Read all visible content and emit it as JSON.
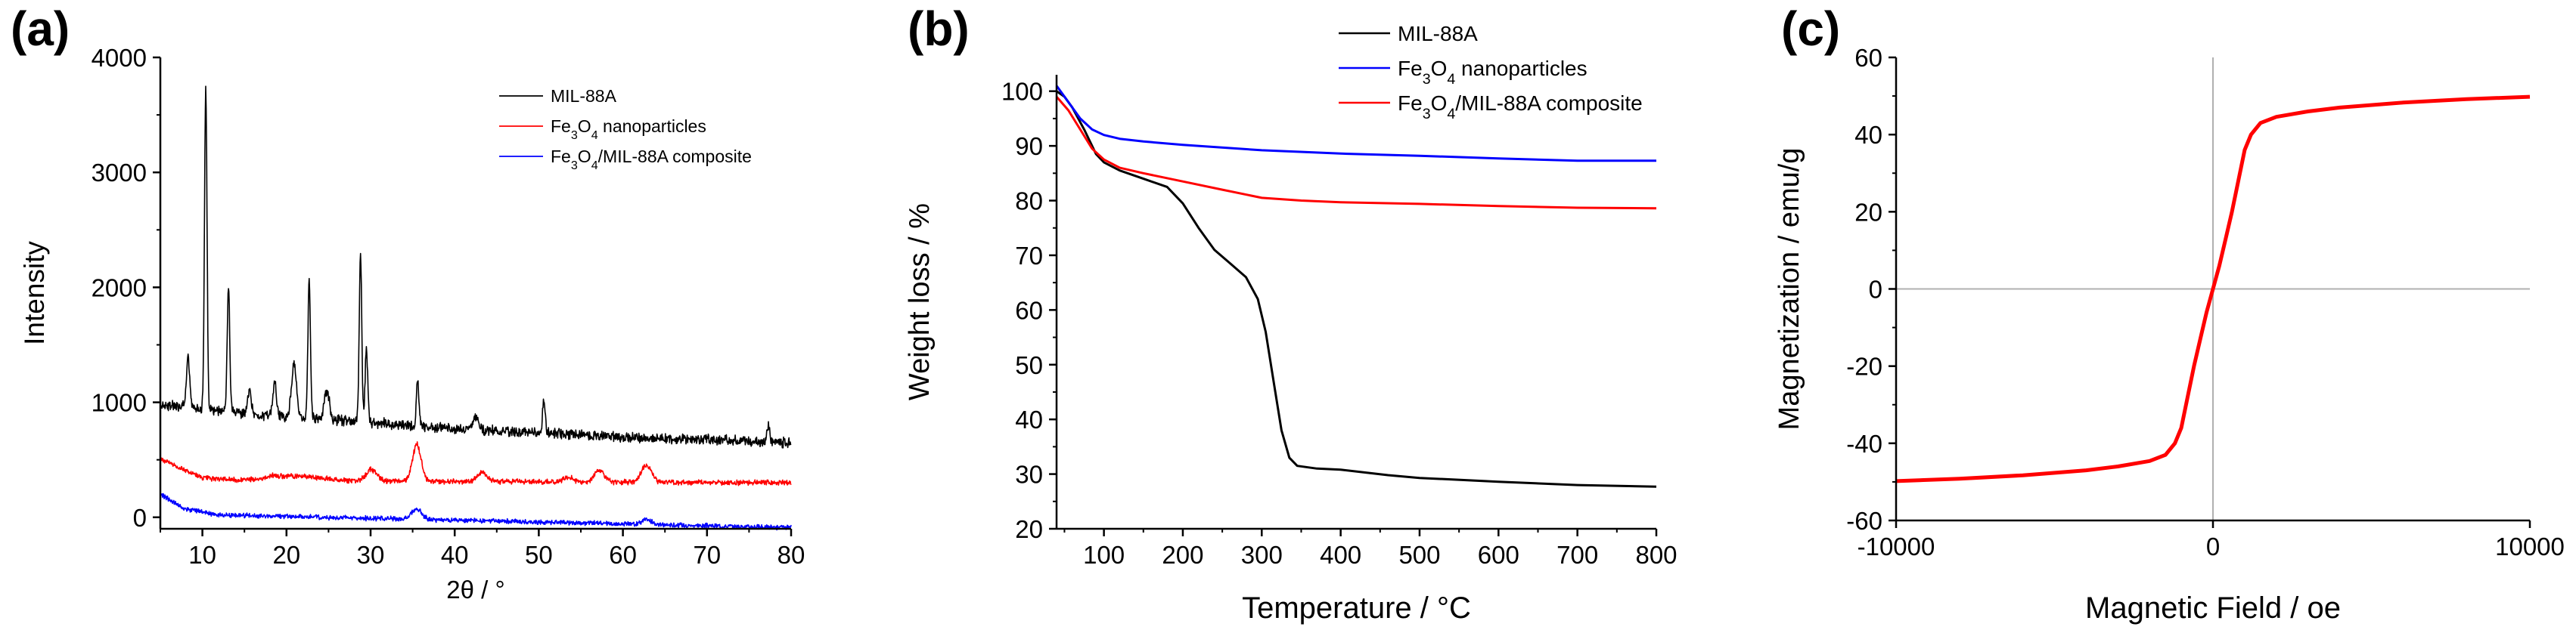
{
  "chart_data": [
    {
      "panel_label": "(a)",
      "type": "line",
      "xlabel": "2θ / °",
      "ylabel": "Intensity",
      "xlim": [
        5,
        80
      ],
      "ylim": [
        -100,
        4000
      ],
      "xticks": [
        "10",
        "20",
        "30",
        "40",
        "50",
        "60",
        "70",
        "80"
      ],
      "yticks": [
        "0",
        "1000",
        "2000",
        "3000",
        "4000"
      ],
      "legend_position": "top-right",
      "series": [
        {
          "name": "MIL-88A",
          "legend_parts": [
            "MIL-88A"
          ],
          "color": "#000000",
          "baseline": [
            [
              5,
              980
            ],
            [
              15,
              900
            ],
            [
              25,
              850
            ],
            [
              40,
              770
            ],
            [
              60,
              700
            ],
            [
              80,
              650
            ]
          ],
          "peaks": [
            [
              8.3,
              420,
              0.2
            ],
            [
              10.4,
              2800,
              0.15
            ],
            [
              13.1,
              1100,
              0.15
            ],
            [
              15.6,
              200,
              0.2
            ],
            [
              18.6,
              300,
              0.2
            ],
            [
              20.9,
              450,
              0.3
            ],
            [
              22.7,
              1200,
              0.15
            ],
            [
              24.8,
              250,
              0.3
            ],
            [
              28.8,
              1450,
              0.15
            ],
            [
              29.5,
              650,
              0.15
            ],
            [
              35.6,
              400,
              0.15
            ],
            [
              42.5,
              100,
              0.4
            ],
            [
              50.6,
              300,
              0.15
            ],
            [
              77.3,
              150,
              0.15
            ]
          ],
          "noise": 35
        },
        {
          "name": "Fe3O4 nanoparticles",
          "legend_parts": [
            "Fe",
            "3",
            "O",
            "4",
            " nanoparticles"
          ],
          "color": "#ff0000",
          "baseline": [
            [
              5,
              510
            ],
            [
              10,
              340
            ],
            [
              15,
              320
            ],
            [
              80,
              300
            ]
          ],
          "peaks": [
            [
              18.3,
              20,
              0.5
            ],
            [
              21,
              40,
              3
            ],
            [
              30.1,
              100,
              0.6
            ],
            [
              35.5,
              320,
              0.5
            ],
            [
              43.3,
              80,
              0.6
            ],
            [
              53.5,
              40,
              0.6
            ],
            [
              57.2,
              100,
              0.6
            ],
            [
              62.8,
              150,
              0.6
            ]
          ],
          "noise": 18
        },
        {
          "name": "Fe3O4/MIL-88A composite",
          "legend_parts": [
            "Fe",
            "3",
            "O",
            "4",
            "/MIL-88A composite"
          ],
          "color": "#0000ff",
          "baseline": [
            [
              5,
              200
            ],
            [
              8,
              70
            ],
            [
              12,
              20
            ],
            [
              80,
              -90
            ]
          ],
          "peaks": [
            [
              35.5,
              90,
              0.6
            ],
            [
              62.8,
              40,
              0.6
            ]
          ],
          "noise": 16
        }
      ]
    },
    {
      "panel_label": "(b)",
      "type": "line",
      "xlabel": "Temperature / °C",
      "ylabel": "Weight loss / %",
      "xlim": [
        40,
        800
      ],
      "ylim": [
        20,
        103
      ],
      "xticks": [
        "100",
        "200",
        "300",
        "400",
        "500",
        "600",
        "700",
        "800"
      ],
      "yticks": [
        "20",
        "30",
        "40",
        "50",
        "60",
        "70",
        "80",
        "90",
        "100"
      ],
      "legend_position": "top-right",
      "series": [
        {
          "name": "MIL-88A",
          "legend_parts": [
            "MIL-88A"
          ],
          "color": "#000000",
          "points": [
            [
              40,
              100
            ],
            [
              50,
              99
            ],
            [
              60,
              97
            ],
            [
              75,
              93
            ],
            [
              90,
              88.5
            ],
            [
              100,
              87
            ],
            [
              120,
              85.5
            ],
            [
              150,
              84
            ],
            [
              180,
              82.5
            ],
            [
              200,
              79.5
            ],
            [
              220,
              75
            ],
            [
              240,
              71
            ],
            [
              260,
              68.5
            ],
            [
              280,
              66
            ],
            [
              295,
              62
            ],
            [
              305,
              56
            ],
            [
              315,
              47
            ],
            [
              325,
              38
            ],
            [
              335,
              33
            ],
            [
              345,
              31.5
            ],
            [
              370,
              31
            ],
            [
              400,
              30.8
            ],
            [
              430,
              30.3
            ],
            [
              460,
              29.8
            ],
            [
              500,
              29.3
            ],
            [
              600,
              28.6
            ],
            [
              700,
              28
            ],
            [
              800,
              27.7
            ]
          ]
        },
        {
          "name": "Fe3O4 nanoparticles",
          "legend_parts": [
            "Fe",
            "3",
            "O",
            "4",
            " nanoparticles"
          ],
          "color": "#0000ff",
          "points": [
            [
              40,
              101
            ],
            [
              55,
              98
            ],
            [
              70,
              95
            ],
            [
              85,
              93
            ],
            [
              100,
              92
            ],
            [
              120,
              91.3
            ],
            [
              150,
              90.8
            ],
            [
              200,
              90.2
            ],
            [
              300,
              89.2
            ],
            [
              400,
              88.6
            ],
            [
              500,
              88.2
            ],
            [
              600,
              87.7
            ],
            [
              700,
              87.3
            ],
            [
              800,
              87.3
            ]
          ]
        },
        {
          "name": "Fe3O4/MIL-88A composite",
          "legend_parts": [
            "Fe",
            "3",
            "O",
            "4",
            "/MIL-88A composite"
          ],
          "color": "#ff0000",
          "points": [
            [
              40,
              99
            ],
            [
              55,
              96.5
            ],
            [
              70,
              93
            ],
            [
              85,
              89.5
            ],
            [
              100,
              87.5
            ],
            [
              120,
              86
            ],
            [
              150,
              85
            ],
            [
              200,
              83.5
            ],
            [
              250,
              82
            ],
            [
              300,
              80.5
            ],
            [
              350,
              80
            ],
            [
              400,
              79.7
            ],
            [
              500,
              79.4
            ],
            [
              600,
              79
            ],
            [
              700,
              78.7
            ],
            [
              800,
              78.6
            ]
          ]
        }
      ]
    },
    {
      "panel_label": "(c)",
      "type": "line",
      "xlabel": "Magnetic Field / oe",
      "ylabel": "Magnetization / emu/g",
      "xlim": [
        -10000,
        10000
      ],
      "ylim": [
        -60,
        60
      ],
      "xticks": [
        "-10000",
        "0",
        "10000"
      ],
      "yticks": [
        "-60",
        "-40",
        "-20",
        "0",
        "20",
        "40",
        "60"
      ],
      "reference_lines": [
        "x = 0",
        "y = 0"
      ],
      "series": [
        {
          "name": "Magnetization curve",
          "color": "#ff0000",
          "points": [
            [
              -10000,
              -49.8
            ],
            [
              -8000,
              -49.2
            ],
            [
              -6000,
              -48.3
            ],
            [
              -4000,
              -47
            ],
            [
              -3000,
              -46
            ],
            [
              -2000,
              -44.6
            ],
            [
              -1500,
              -43
            ],
            [
              -1200,
              -40
            ],
            [
              -1000,
              -36
            ],
            [
              -800,
              -28
            ],
            [
              -600,
              -20
            ],
            [
              -400,
              -13
            ],
            [
              -200,
              -6
            ],
            [
              0,
              0
            ],
            [
              200,
              6
            ],
            [
              400,
              13
            ],
            [
              600,
              20
            ],
            [
              800,
              28
            ],
            [
              1000,
              36
            ],
            [
              1200,
              40
            ],
            [
              1500,
              43
            ],
            [
              2000,
              44.6
            ],
            [
              3000,
              46
            ],
            [
              4000,
              47
            ],
            [
              6000,
              48.3
            ],
            [
              8000,
              49.2
            ],
            [
              10000,
              49.8
            ]
          ]
        }
      ]
    }
  ]
}
